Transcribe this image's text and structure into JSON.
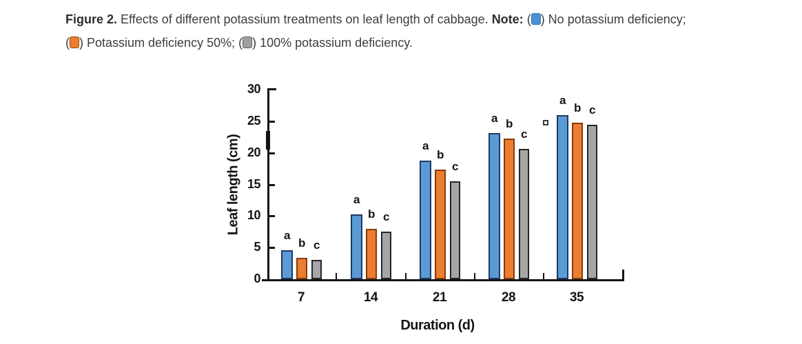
{
  "caption": {
    "figure_label": "Figure 2.",
    "body": " Effects of different potassium treatments on leaf length of cabbage. ",
    "note_label": "Note:",
    "note_items": [
      {
        "pre": " (",
        "post": ") No potassium deficiency;",
        "color": "#4a90d2",
        "border": "#3a7cba"
      },
      {
        "pre": "(",
        "post": ") Potassium deficiency 50%; ",
        "color": "#ed7d31",
        "border": "#9c4a00"
      },
      {
        "pre": "(",
        "post": ") 100% potassium deficiency.",
        "color": "#a0a0a0",
        "border": "#5f5f5f"
      }
    ]
  },
  "chart_data": {
    "type": "bar",
    "title": "",
    "xlabel": "Duration (d)",
    "ylabel": "Leaf length (cm)",
    "categories": [
      "7",
      "14",
      "21",
      "28",
      "35"
    ],
    "series": [
      {
        "name": "No potassium deficiency",
        "color": "#5b9bd5",
        "border": "#1f3864",
        "values": [
          4.6,
          10.3,
          18.8,
          23.1,
          26.0
        ]
      },
      {
        "name": "Potassium deficiency 50%",
        "color": "#ed7d31",
        "border": "#843c0c",
        "values": [
          3.4,
          8.0,
          17.3,
          22.3,
          24.8
        ]
      },
      {
        "name": "100% potassium deficiency",
        "color": "#a6a6a6",
        "border": "#262626",
        "values": [
          3.1,
          7.5,
          15.5,
          20.6,
          24.4
        ]
      }
    ],
    "sig_letters": [
      [
        "a",
        "b",
        "c"
      ],
      [
        "a",
        "b",
        "c"
      ],
      [
        "a",
        "b",
        "c"
      ],
      [
        "a",
        "b",
        "c"
      ],
      [
        "a",
        "b",
        "c"
      ]
    ],
    "ylim": [
      0,
      30
    ],
    "yticks": [
      0,
      5,
      10,
      15,
      20,
      25,
      30
    ],
    "grid": false,
    "legend_position": "in-caption"
  }
}
